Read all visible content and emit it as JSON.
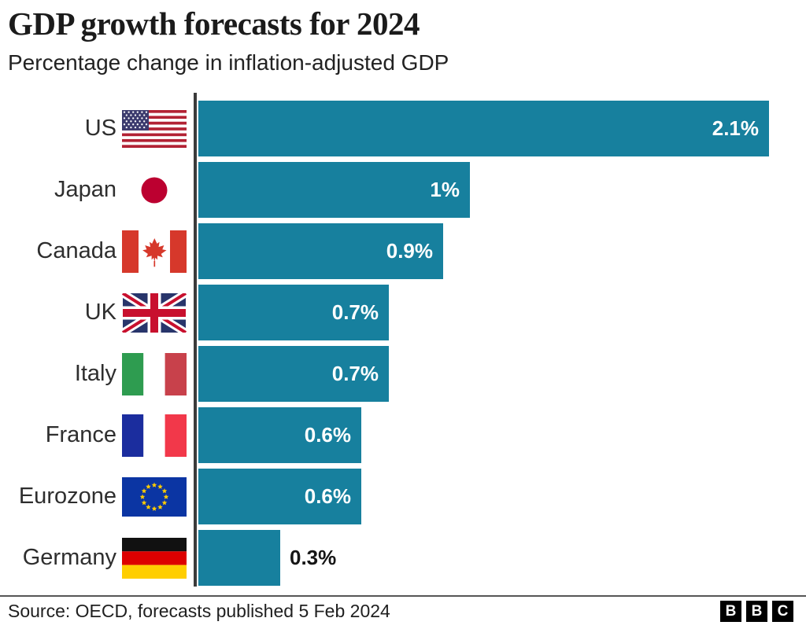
{
  "header": {
    "title": "GDP growth forecasts for 2024",
    "subtitle": "Percentage change in inflation-adjusted GDP"
  },
  "chart_data": {
    "type": "bar",
    "orientation": "horizontal",
    "title": "GDP growth forecasts for 2024",
    "subtitle": "Percentage change in inflation-adjusted GDP",
    "xlabel": "",
    "ylabel": "",
    "xlim": [
      0,
      2.1
    ],
    "grid": false,
    "legend": false,
    "bar_color": "#17809E",
    "axis_color": "#3b3b3b",
    "value_label_inside_color": "#ffffff",
    "value_label_outside_color": "#151515",
    "categories": [
      "US",
      "Japan",
      "Canada",
      "UK",
      "Italy",
      "France",
      "Eurozone",
      "Germany"
    ],
    "values": [
      2.1,
      1.0,
      0.9,
      0.7,
      0.7,
      0.6,
      0.6,
      0.3
    ],
    "rows": [
      {
        "label": "US",
        "flag": "us",
        "flag_icon": "us-flag-icon",
        "value": 2.1,
        "value_label": "2.1%",
        "value_label_position": "inside"
      },
      {
        "label": "Japan",
        "flag": "jp",
        "flag_icon": "japan-flag-icon",
        "value": 1.0,
        "value_label": "1%",
        "value_label_position": "inside"
      },
      {
        "label": "Canada",
        "flag": "ca",
        "flag_icon": "canada-flag-icon",
        "value": 0.9,
        "value_label": "0.9%",
        "value_label_position": "inside"
      },
      {
        "label": "UK",
        "flag": "uk",
        "flag_icon": "uk-flag-icon",
        "value": 0.7,
        "value_label": "0.7%",
        "value_label_position": "inside"
      },
      {
        "label": "Italy",
        "flag": "it",
        "flag_icon": "italy-flag-icon",
        "value": 0.7,
        "value_label": "0.7%",
        "value_label_position": "inside"
      },
      {
        "label": "France",
        "flag": "fr",
        "flag_icon": "france-flag-icon",
        "value": 0.6,
        "value_label": "0.6%",
        "value_label_position": "inside"
      },
      {
        "label": "Eurozone",
        "flag": "eu",
        "flag_icon": "eurozone-flag-icon",
        "value": 0.6,
        "value_label": "0.6%",
        "value_label_position": "inside"
      },
      {
        "label": "Germany",
        "flag": "de",
        "flag_icon": "germany-flag-icon",
        "value": 0.3,
        "value_label": "0.3%",
        "value_label_position": "outside"
      }
    ]
  },
  "footer": {
    "source": "Source: OECD, forecasts published 5 Feb 2024",
    "logo_letters": [
      "B",
      "B",
      "C"
    ]
  }
}
